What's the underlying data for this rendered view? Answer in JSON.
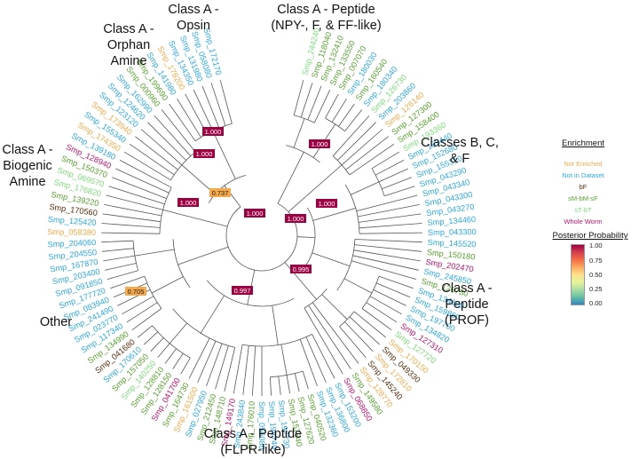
{
  "clade_labels": [
    {
      "id": "opsin",
      "text": "Class A -\nOpsin"
    },
    {
      "id": "npy",
      "text": "Class A - Peptide\n(NPY-, F, & FF-like)"
    },
    {
      "id": "orphan",
      "text": "Class A -\nOrphan\nAmine"
    },
    {
      "id": "biogenic",
      "text": "Class A -\nBiogenic\nAmine"
    },
    {
      "id": "bcf",
      "text": "Classes B, C,\n& F"
    },
    {
      "id": "prof",
      "text": "Class A -\nPeptide\n(PROF)"
    },
    {
      "id": "other",
      "text": "Other"
    },
    {
      "id": "flpr",
      "text": "Class A - Peptide\n(FLPR-like)"
    }
  ],
  "legend": {
    "title": "Enrichment",
    "items": [
      {
        "label": "Not Enriched",
        "color": "#f6a94b"
      },
      {
        "label": "Not in Dataset",
        "color": "#2ea8e6"
      },
      {
        "label": "bF",
        "color": "#5a2d0c"
      },
      {
        "label": "sM-bM-sF",
        "color": "#58a332"
      },
      {
        "label": "sT-bT",
        "color": "#7ddc7a"
      },
      {
        "label": "Whole Worm",
        "color": "#c4136c"
      }
    ]
  },
  "posterior_scale": {
    "title": "Posterior Probability",
    "ticks": [
      "1.00",
      "0.75",
      "0.50",
      "0.25",
      "0.00"
    ]
  },
  "node_labels": [
    "1.000",
    "1.000",
    "0.737",
    "1.000",
    "1.000",
    "1.000",
    "1.000",
    "0.995",
    "0.997",
    "0.705",
    "1.000"
  ],
  "tips": [
    {
      "id": "Smp_244240",
      "color": "#7ddc7a"
    },
    {
      "id": "Smp_118040",
      "color": "#58a332"
    },
    {
      "id": "Smp_132410",
      "color": "#58a332"
    },
    {
      "id": "Smp_133550",
      "color": "#58a332"
    },
    {
      "id": "Smp_007070",
      "color": "#58a332"
    },
    {
      "id": "Smp_180030",
      "color": "#2ea8e6"
    },
    {
      "id": "Smp_160540",
      "color": "#58a332"
    },
    {
      "id": "Smp_180340",
      "color": "#2ea8e6"
    },
    {
      "id": "Smp_126730",
      "color": "#7ddc7a"
    },
    {
      "id": "Smp_203860",
      "color": "#2ea8e6"
    },
    {
      "id": "Smp_126140",
      "color": "#f6a94b"
    },
    {
      "id": "Smp_127300",
      "color": "#58a332"
    },
    {
      "id": "Smp_158400",
      "color": "#58a332"
    },
    {
      "id": "Smp_193360",
      "color": "#7ddc7a"
    },
    {
      "id": "Smp_165440",
      "color": "#2ea8e6"
    },
    {
      "id": "Smp_152680",
      "color": "#2ea8e6"
    },
    {
      "id": "Smp_155310",
      "color": "#2ea8e6"
    },
    {
      "id": "Smp_043290",
      "color": "#2ea8e6"
    },
    {
      "id": "Smp_043340",
      "color": "#2ea8e6"
    },
    {
      "id": "Smp_043300",
      "color": "#2ea8e6"
    },
    {
      "id": "Smp_043270",
      "color": "#2ea8e6"
    },
    {
      "id": "Smp_134460",
      "color": "#2ea8e6"
    },
    {
      "id": "Smp_043300",
      "color": "#2ea8e6"
    },
    {
      "id": "Smp_145520",
      "color": "#2ea8e6"
    },
    {
      "id": "Smp_150180",
      "color": "#58a332"
    },
    {
      "id": "Smp_202470",
      "color": "#c4136c"
    },
    {
      "id": "Smp_245850",
      "color": "#2ea8e6"
    },
    {
      "id": "Smp_126730",
      "color": "#58a332"
    },
    {
      "id": "Smp_134100",
      "color": "#2ea8e6"
    },
    {
      "id": "Smp_159860",
      "color": "#2ea8e6"
    },
    {
      "id": "Smp_197700",
      "color": "#2ea8e6"
    },
    {
      "id": "Smp_134820",
      "color": "#2ea8e6"
    },
    {
      "id": "Smp_127310",
      "color": "#c4136c"
    },
    {
      "id": "Smp_127720",
      "color": "#7ddc7a"
    },
    {
      "id": "Smp_170150",
      "color": "#f6a94b"
    },
    {
      "id": "Smp_049330",
      "color": "#5a2d0c"
    },
    {
      "id": "Smp_172810",
      "color": "#f6a94b"
    },
    {
      "id": "Smp_145240",
      "color": "#5a2d0c"
    },
    {
      "id": "Smp_128770",
      "color": "#f6a94b"
    },
    {
      "id": "Smp_149580",
      "color": "#58a332"
    },
    {
      "id": "Smp_068850",
      "color": "#c4136c"
    },
    {
      "id": "Smp_153200",
      "color": "#2ea8e6"
    },
    {
      "id": "Smp_136800",
      "color": "#2ea8e6"
    },
    {
      "id": "Smp_132360",
      "color": "#2ea8e6"
    },
    {
      "id": "Smp_040520",
      "color": "#58a332"
    },
    {
      "id": "Smp_127620",
      "color": "#58a332"
    },
    {
      "id": "Smp_157640",
      "color": "#58a332"
    },
    {
      "id": "Smp_192730",
      "color": "#2ea8e6"
    },
    {
      "id": "Smp_194740",
      "color": "#2ea8e6"
    },
    {
      "id": "Smp_056080",
      "color": "#2ea8e6"
    },
    {
      "id": "Smp_176010",
      "color": "#58a332"
    },
    {
      "id": "Smp_243840",
      "color": "#2ea8e6"
    },
    {
      "id": "Smp_149170",
      "color": "#c4136c"
    },
    {
      "id": "Smp_148710",
      "color": "#58a332"
    },
    {
      "id": "Smp_212450",
      "color": "#58a332"
    },
    {
      "id": "Smp_027950",
      "color": "#2ea8e6"
    },
    {
      "id": "Smp_161500",
      "color": "#f6a94b"
    },
    {
      "id": "Smp_164730",
      "color": "#58a332"
    },
    {
      "id": "Smp_041700",
      "color": "#c4136c"
    },
    {
      "id": "Smp_128150",
      "color": "#58a332"
    },
    {
      "id": "Smp_128810",
      "color": "#58a332"
    },
    {
      "id": "Smp_140250",
      "color": "#7ddc7a"
    },
    {
      "id": "Smp_157050",
      "color": "#58a332"
    },
    {
      "id": "Smp_170610",
      "color": "#2ea8e6"
    },
    {
      "id": "Smp_041680",
      "color": "#5a2d0c"
    },
    {
      "id": "Smp_134990",
      "color": "#58a332"
    },
    {
      "id": "Smp_117340",
      "color": "#2ea8e6"
    },
    {
      "id": "Smp_023770",
      "color": "#2ea8e6"
    },
    {
      "id": "Smp_241490",
      "color": "#2ea8e6"
    },
    {
      "id": "Smp_083940",
      "color": "#2ea8e6"
    },
    {
      "id": "Smp_177720",
      "color": "#2ea8e6"
    },
    {
      "id": "Smp_091850",
      "color": "#2ea8e6"
    },
    {
      "id": "Smp_203400",
      "color": "#2ea8e6"
    },
    {
      "id": "Smp_167870",
      "color": "#2ea8e6"
    },
    {
      "id": "Smp_204550",
      "color": "#2ea8e6"
    },
    {
      "id": "Smp_204060",
      "color": "#2ea8e6"
    },
    {
      "id": "Smp_058380",
      "color": "#f6a94b"
    },
    {
      "id": "Smp_125420",
      "color": "#2ea8e6"
    },
    {
      "id": "Smp_170560",
      "color": "#5a2d0c"
    },
    {
      "id": "Smp_139220",
      "color": "#58a332"
    },
    {
      "id": "Smp_176820",
      "color": "#7ddc7a"
    },
    {
      "id": "Smp_069570",
      "color": "#7ddc7a"
    },
    {
      "id": "Smp_150370",
      "color": "#58a332"
    },
    {
      "id": "Smp_128940",
      "color": "#c4136c"
    },
    {
      "id": "Smp_139180",
      "color": "#2ea8e6"
    },
    {
      "id": "Smp_174350",
      "color": "#f6a94b"
    },
    {
      "id": "Smp_155340",
      "color": "#2ea8e6"
    },
    {
      "id": "Smp_173940",
      "color": "#f6a94b"
    },
    {
      "id": "Smp_123120",
      "color": "#2ea8e6"
    },
    {
      "id": "Smp_124620",
      "color": "#2ea8e6"
    },
    {
      "id": "Smp_162990",
      "color": "#2ea8e6"
    },
    {
      "id": "Smp_000960",
      "color": "#58a332"
    },
    {
      "id": "Smp_199690",
      "color": "#58a332"
    },
    {
      "id": "Smp_141980",
      "color": "#2ea8e6"
    },
    {
      "id": "Smp_178200",
      "color": "#f6a94b"
    },
    {
      "id": "Smp_134350",
      "color": "#2ea8e6"
    },
    {
      "id": "Smp_131980",
      "color": "#2ea8e6"
    },
    {
      "id": "Smp_058080",
      "color": "#2ea8e6"
    },
    {
      "id": "Smp_172170",
      "color": "#2ea8e6"
    }
  ]
}
